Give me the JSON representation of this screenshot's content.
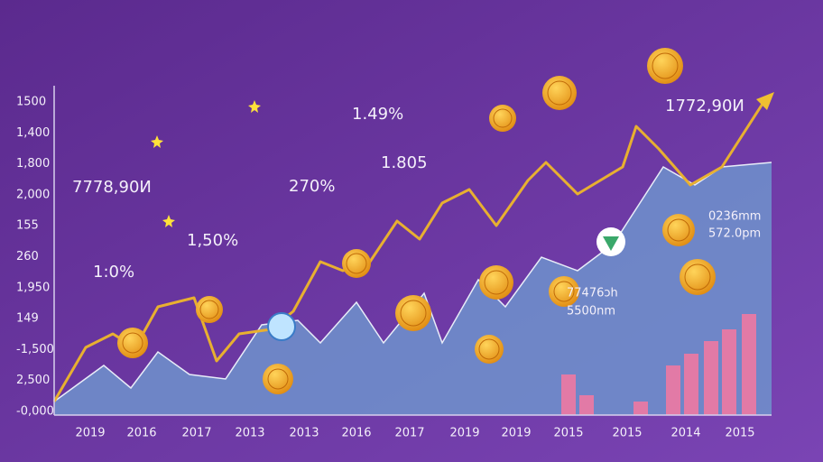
{
  "y_axis_labels": [
    "1500",
    "1,400",
    "1,800",
    "2,000",
    "155",
    "260",
    "1,950",
    "149",
    "-1,500",
    "2,500",
    "-0,000"
  ],
  "x_axis_labels": [
    "2019",
    "2016",
    "2017",
    "2013",
    "2013",
    "2016",
    "2017",
    "2019",
    "2019",
    "2015",
    "2015",
    "2014",
    "2015"
  ],
  "annotations": [
    "7778,90И",
    "1:0%",
    "1,50%",
    "270%",
    "1.49%",
    "1.805",
    "1772,90И",
    "0236mm",
    "572.0pm",
    "77476ɔh",
    "5500nm"
  ]
}
